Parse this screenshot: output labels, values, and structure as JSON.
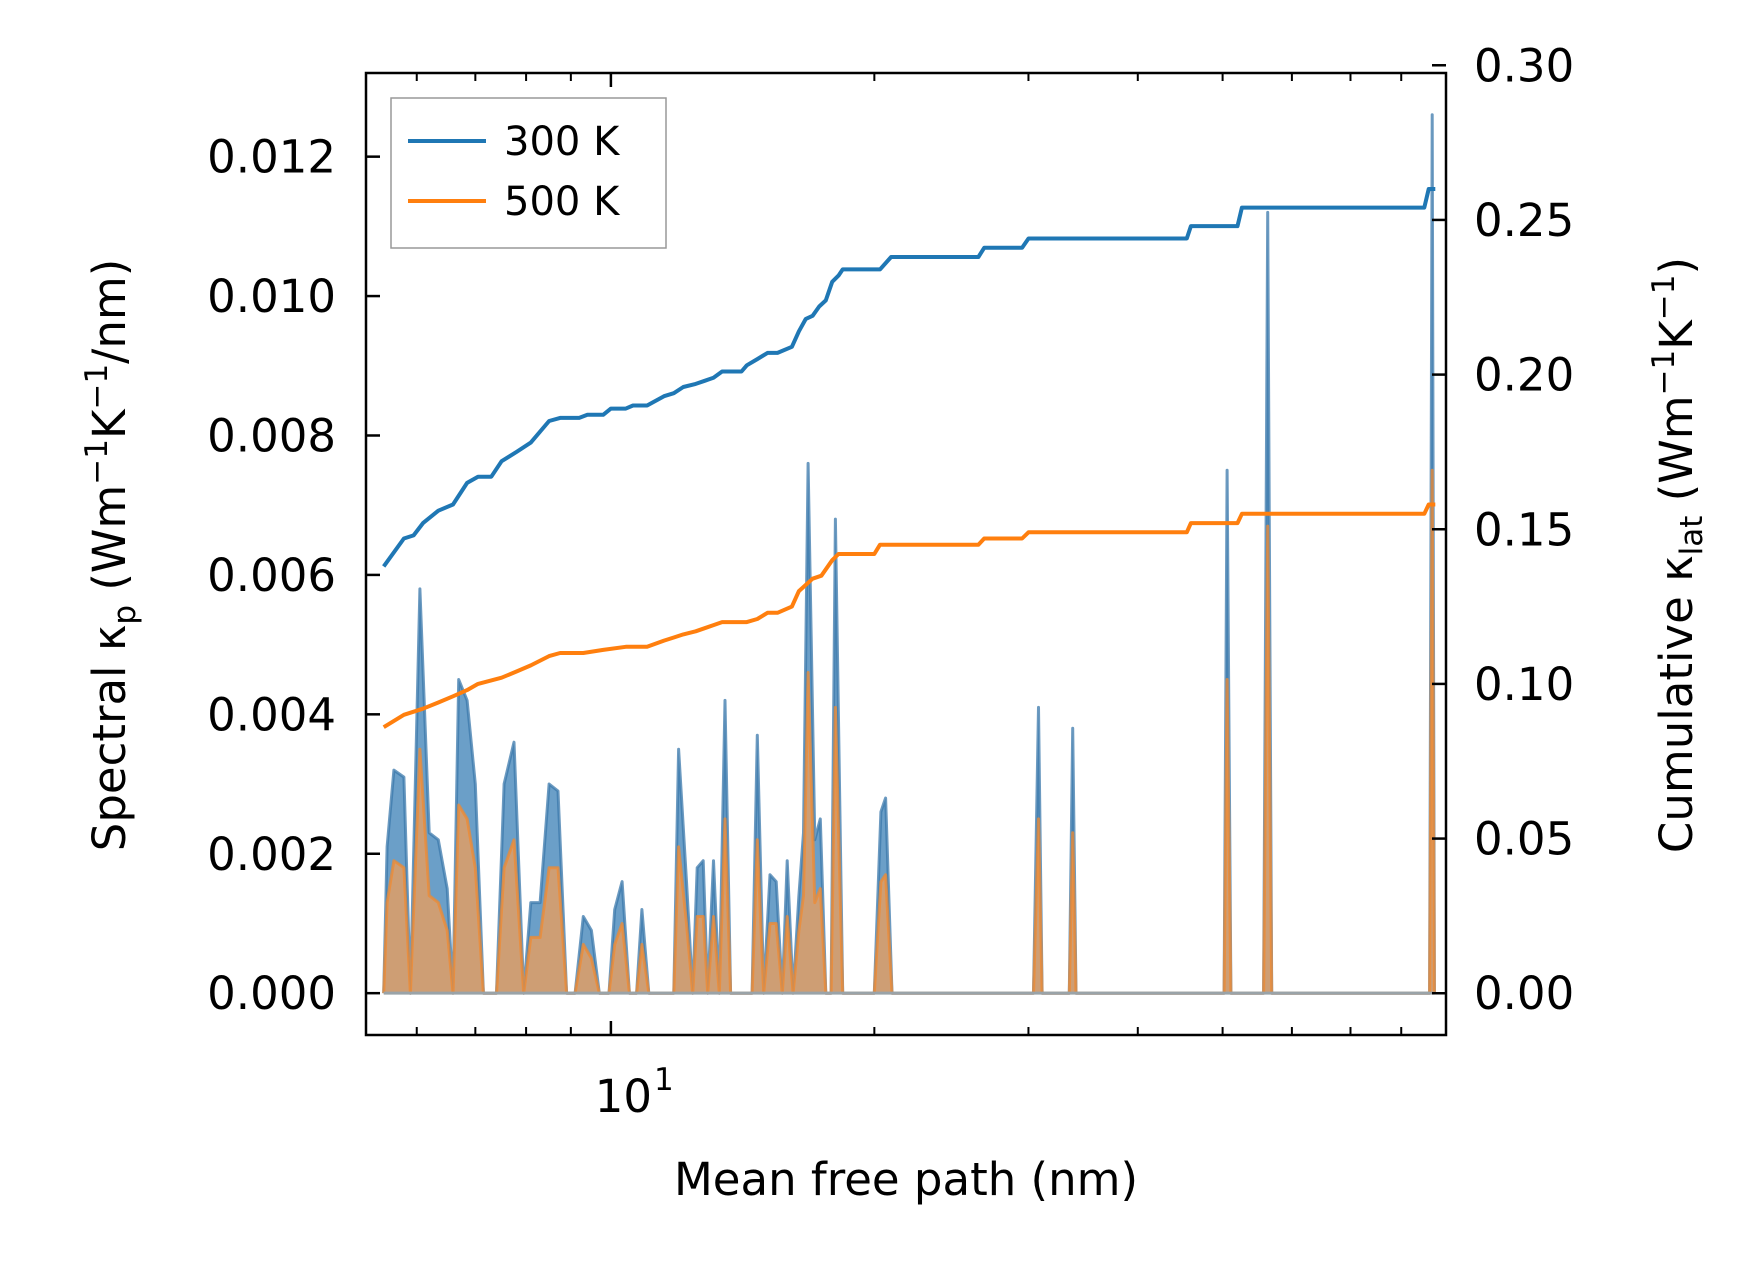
{
  "chart_data": {
    "type": "line",
    "x_scale": "log",
    "xlim": [
      5.25,
      90
    ],
    "xlabel": "Mean free path (nm)",
    "x_tick_label": {
      "base": "10",
      "exp": "1",
      "value": 10
    },
    "left_axis": {
      "label_parts": [
        "Spectral κ",
        "p",
        " (Wm",
        "−1",
        "K",
        "−1",
        "/nm)"
      ],
      "ylim": [
        -0.0006,
        0.0132
      ],
      "ticks": [
        "0.000",
        "0.002",
        "0.004",
        "0.006",
        "0.008",
        "0.010",
        "0.012"
      ]
    },
    "right_axis": {
      "label_parts": [
        "Cumulative κ",
        "lat",
        " (Wm",
        "−1",
        "K",
        "−1",
        ")"
      ],
      "ylim": [
        -0.0135,
        0.2975
      ],
      "ticks": [
        "0.00",
        "0.05",
        "0.10",
        "0.15",
        "0.20",
        "0.25",
        "0.30"
      ]
    },
    "legend": {
      "position": "top-left",
      "entries": [
        "300 K",
        "500 K"
      ]
    },
    "colors": {
      "300 K": "#1f77b4",
      "500 K": "#ff7f0e",
      "fill_300": "#5b95c2",
      "fill_500": "#d99d6a"
    },
    "spectral_series": [
      {
        "name": "300 K",
        "points": [
          [
            5.5,
            0.0
          ],
          [
            5.55,
            0.0021
          ],
          [
            5.65,
            0.0032
          ],
          [
            5.8,
            0.0031
          ],
          [
            5.9,
            0.0
          ],
          [
            6.05,
            0.0058
          ],
          [
            6.2,
            0.0023
          ],
          [
            6.35,
            0.0022
          ],
          [
            6.5,
            0.0015
          ],
          [
            6.6,
            0.0
          ],
          [
            6.7,
            0.0045
          ],
          [
            6.85,
            0.0042
          ],
          [
            7.0,
            0.003
          ],
          [
            7.15,
            0.0
          ],
          [
            7.4,
            0.0
          ],
          [
            7.55,
            0.003
          ],
          [
            7.75,
            0.0036
          ],
          [
            7.95,
            0.0
          ],
          [
            8.1,
            0.0013
          ],
          [
            8.3,
            0.0013
          ],
          [
            8.5,
            0.003
          ],
          [
            8.7,
            0.0029
          ],
          [
            8.9,
            0.0
          ],
          [
            9.1,
            0.0
          ],
          [
            9.3,
            0.0011
          ],
          [
            9.5,
            0.0009
          ],
          [
            9.7,
            0.0
          ],
          [
            9.95,
            0.0
          ],
          [
            10.1,
            0.0012
          ],
          [
            10.3,
            0.0016
          ],
          [
            10.5,
            0.0
          ],
          [
            10.7,
            0.0
          ],
          [
            10.85,
            0.0012
          ],
          [
            11.05,
            0.0
          ],
          [
            11.8,
            0.0
          ],
          [
            11.95,
            0.0035
          ],
          [
            12.2,
            0.0016
          ],
          [
            12.4,
            0.0
          ],
          [
            12.55,
            0.0018
          ],
          [
            12.75,
            0.0019
          ],
          [
            12.9,
            0.0
          ],
          [
            13.1,
            0.0019
          ],
          [
            13.3,
            0.0
          ],
          [
            13.5,
            0.0042
          ],
          [
            13.7,
            0.0
          ],
          [
            14.5,
            0.0
          ],
          [
            14.7,
            0.0037
          ],
          [
            14.95,
            0.0
          ],
          [
            15.2,
            0.0017
          ],
          [
            15.45,
            0.0016
          ],
          [
            15.7,
            0.0
          ],
          [
            15.9,
            0.0019
          ],
          [
            16.15,
            0.0
          ],
          [
            16.4,
            0.0014
          ],
          [
            16.6,
            0.0023
          ],
          [
            16.8,
            0.0076
          ],
          [
            17.1,
            0.0022
          ],
          [
            17.35,
            0.0025
          ],
          [
            17.6,
            0.0
          ],
          [
            17.85,
            0.0
          ],
          [
            18.05,
            0.0068
          ],
          [
            18.4,
            0.0
          ],
          [
            20.0,
            0.0
          ],
          [
            20.35,
            0.0026
          ],
          [
            20.6,
            0.0028
          ],
          [
            20.95,
            0.0
          ],
          [
            30.4,
            0.0
          ],
          [
            30.8,
            0.0041
          ],
          [
            31.1,
            0.0
          ],
          [
            33.4,
            0.0
          ],
          [
            33.7,
            0.0038
          ],
          [
            34.0,
            0.0
          ],
          [
            50.2,
            0.0
          ],
          [
            50.6,
            0.0075
          ],
          [
            51.1,
            0.0
          ],
          [
            55.7,
            0.0
          ],
          [
            56.3,
            0.0112
          ],
          [
            56.9,
            0.0
          ],
          [
            86.2,
            0.0
          ],
          [
            86.8,
            0.0126
          ],
          [
            87.3,
            0.0
          ]
        ]
      },
      {
        "name": "500 K",
        "points": [
          [
            5.5,
            0.0
          ],
          [
            5.55,
            0.0013
          ],
          [
            5.65,
            0.0019
          ],
          [
            5.8,
            0.0018
          ],
          [
            5.9,
            0.0
          ],
          [
            6.05,
            0.0035
          ],
          [
            6.2,
            0.0014
          ],
          [
            6.35,
            0.0013
          ],
          [
            6.5,
            0.0009
          ],
          [
            6.6,
            0.0
          ],
          [
            6.7,
            0.0027
          ],
          [
            6.85,
            0.0025
          ],
          [
            7.0,
            0.0018
          ],
          [
            7.15,
            0.0
          ],
          [
            7.4,
            0.0
          ],
          [
            7.55,
            0.0018
          ],
          [
            7.75,
            0.0022
          ],
          [
            7.95,
            0.0
          ],
          [
            8.1,
            0.0008
          ],
          [
            8.3,
            0.0008
          ],
          [
            8.5,
            0.0018
          ],
          [
            8.7,
            0.0018
          ],
          [
            8.9,
            0.0
          ],
          [
            9.1,
            0.0
          ],
          [
            9.3,
            0.0007
          ],
          [
            9.5,
            0.0005
          ],
          [
            9.7,
            0.0
          ],
          [
            9.95,
            0.0
          ],
          [
            10.1,
            0.0007
          ],
          [
            10.3,
            0.001
          ],
          [
            10.5,
            0.0
          ],
          [
            10.7,
            0.0
          ],
          [
            10.85,
            0.0007
          ],
          [
            11.05,
            0.0
          ],
          [
            11.8,
            0.0
          ],
          [
            11.95,
            0.0021
          ],
          [
            12.2,
            0.001
          ],
          [
            12.4,
            0.0
          ],
          [
            12.55,
            0.0011
          ],
          [
            12.75,
            0.0011
          ],
          [
            12.9,
            0.0
          ],
          [
            13.1,
            0.0011
          ],
          [
            13.3,
            0.0
          ],
          [
            13.5,
            0.0025
          ],
          [
            13.7,
            0.0
          ],
          [
            14.5,
            0.0
          ],
          [
            14.7,
            0.0022
          ],
          [
            14.95,
            0.0
          ],
          [
            15.2,
            0.001
          ],
          [
            15.45,
            0.001
          ],
          [
            15.7,
            0.0
          ],
          [
            15.9,
            0.0011
          ],
          [
            16.15,
            0.0
          ],
          [
            16.4,
            0.0009
          ],
          [
            16.6,
            0.0014
          ],
          [
            16.8,
            0.0046
          ],
          [
            17.1,
            0.0013
          ],
          [
            17.35,
            0.0015
          ],
          [
            17.6,
            0.0
          ],
          [
            17.85,
            0.0
          ],
          [
            18.05,
            0.0041
          ],
          [
            18.4,
            0.0
          ],
          [
            20.0,
            0.0
          ],
          [
            20.35,
            0.0016
          ],
          [
            20.6,
            0.0017
          ],
          [
            20.95,
            0.0
          ],
          [
            30.4,
            0.0
          ],
          [
            30.8,
            0.0025
          ],
          [
            31.1,
            0.0
          ],
          [
            33.4,
            0.0
          ],
          [
            33.7,
            0.0023
          ],
          [
            34.0,
            0.0
          ],
          [
            50.2,
            0.0
          ],
          [
            50.6,
            0.0045
          ],
          [
            51.1,
            0.0
          ],
          [
            55.7,
            0.0
          ],
          [
            56.3,
            0.0067
          ],
          [
            56.9,
            0.0
          ],
          [
            86.2,
            0.0
          ],
          [
            86.8,
            0.0075
          ],
          [
            87.3,
            0.0
          ]
        ]
      }
    ],
    "cumulative_series": [
      {
        "name": "300 K",
        "points": [
          [
            5.5,
            0.138
          ],
          [
            5.8,
            0.147
          ],
          [
            5.95,
            0.148
          ],
          [
            6.1,
            0.152
          ],
          [
            6.35,
            0.156
          ],
          [
            6.6,
            0.158
          ],
          [
            6.85,
            0.165
          ],
          [
            7.05,
            0.167
          ],
          [
            7.3,
            0.167
          ],
          [
            7.5,
            0.172
          ],
          [
            7.8,
            0.175
          ],
          [
            8.1,
            0.178
          ],
          [
            8.5,
            0.185
          ],
          [
            8.75,
            0.186
          ],
          [
            9.2,
            0.186
          ],
          [
            9.4,
            0.187
          ],
          [
            9.8,
            0.187
          ],
          [
            10.0,
            0.189
          ],
          [
            10.4,
            0.189
          ],
          [
            10.6,
            0.19
          ],
          [
            11.0,
            0.19
          ],
          [
            11.5,
            0.193
          ],
          [
            11.8,
            0.194
          ],
          [
            12.1,
            0.196
          ],
          [
            12.5,
            0.197
          ],
          [
            12.8,
            0.198
          ],
          [
            13.1,
            0.199
          ],
          [
            13.4,
            0.201
          ],
          [
            14.1,
            0.201
          ],
          [
            14.3,
            0.203
          ],
          [
            14.7,
            0.205
          ],
          [
            15.1,
            0.207
          ],
          [
            15.5,
            0.207
          ],
          [
            16.1,
            0.209
          ],
          [
            16.4,
            0.214
          ],
          [
            16.7,
            0.218
          ],
          [
            17.0,
            0.219
          ],
          [
            17.3,
            0.222
          ],
          [
            17.6,
            0.224
          ],
          [
            17.9,
            0.23
          ],
          [
            18.2,
            0.232
          ],
          [
            18.4,
            0.234
          ],
          [
            20.3,
            0.234
          ],
          [
            20.9,
            0.238
          ],
          [
            22.8,
            0.238
          ],
          [
            26.3,
            0.238
          ],
          [
            26.7,
            0.241
          ],
          [
            29.5,
            0.241
          ],
          [
            30.0,
            0.244
          ],
          [
            37.0,
            0.244
          ],
          [
            45.5,
            0.244
          ],
          [
            46.0,
            0.248
          ],
          [
            52.0,
            0.248
          ],
          [
            52.6,
            0.254
          ],
          [
            85.0,
            0.254
          ],
          [
            86.0,
            0.26
          ],
          [
            87.5,
            0.26
          ]
        ]
      },
      {
        "name": "500 K",
        "points": [
          [
            5.5,
            0.086
          ],
          [
            5.8,
            0.09
          ],
          [
            6.1,
            0.092
          ],
          [
            6.35,
            0.094
          ],
          [
            6.6,
            0.096
          ],
          [
            6.85,
            0.098
          ],
          [
            7.05,
            0.1
          ],
          [
            7.5,
            0.102
          ],
          [
            7.8,
            0.104
          ],
          [
            8.1,
            0.106
          ],
          [
            8.5,
            0.109
          ],
          [
            8.75,
            0.11
          ],
          [
            9.3,
            0.11
          ],
          [
            9.8,
            0.111
          ],
          [
            10.4,
            0.112
          ],
          [
            11.0,
            0.112
          ],
          [
            11.5,
            0.114
          ],
          [
            11.8,
            0.115
          ],
          [
            12.1,
            0.116
          ],
          [
            12.5,
            0.117
          ],
          [
            12.8,
            0.118
          ],
          [
            13.1,
            0.119
          ],
          [
            13.4,
            0.12
          ],
          [
            14.3,
            0.12
          ],
          [
            14.7,
            0.121
          ],
          [
            15.1,
            0.123
          ],
          [
            15.5,
            0.123
          ],
          [
            16.1,
            0.125
          ],
          [
            16.4,
            0.13
          ],
          [
            16.7,
            0.132
          ],
          [
            17.0,
            0.134
          ],
          [
            17.4,
            0.135
          ],
          [
            17.9,
            0.14
          ],
          [
            18.2,
            0.142
          ],
          [
            19.0,
            0.142
          ],
          [
            20.0,
            0.142
          ],
          [
            20.3,
            0.145
          ],
          [
            26.3,
            0.145
          ],
          [
            26.7,
            0.147
          ],
          [
            29.5,
            0.147
          ],
          [
            30.0,
            0.149
          ],
          [
            37.0,
            0.149
          ],
          [
            45.5,
            0.149
          ],
          [
            46.0,
            0.152
          ],
          [
            52.0,
            0.152
          ],
          [
            52.6,
            0.155
          ],
          [
            85.0,
            0.155
          ],
          [
            86.0,
            0.158
          ],
          [
            87.5,
            0.158
          ]
        ]
      }
    ]
  }
}
